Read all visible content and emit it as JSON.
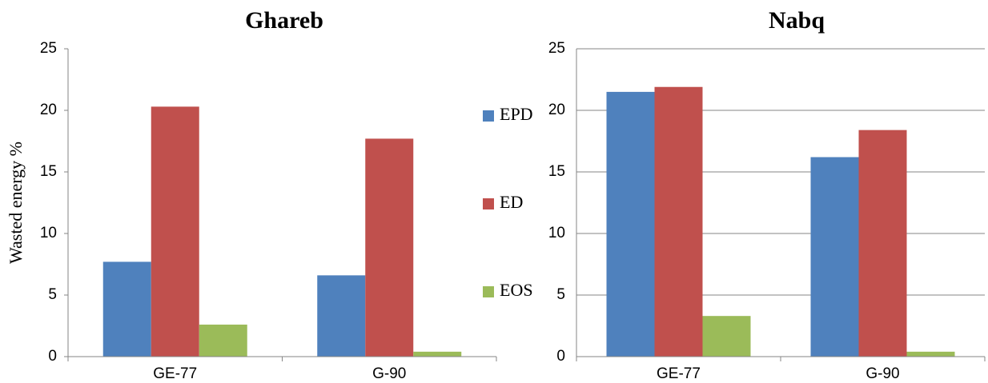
{
  "chart_data": [
    {
      "type": "bar",
      "title": "Ghareb",
      "y_label": "Wasted energy %",
      "categories": [
        "GE-77",
        "G-90"
      ],
      "series": [
        {
          "name": "EPD",
          "color": "#4f81bd",
          "values": [
            7.7,
            6.6
          ]
        },
        {
          "name": "ED",
          "color": "#c0504d",
          "values": [
            20.3,
            17.7
          ]
        },
        {
          "name": "EOS",
          "color": "#9bbb59",
          "values": [
            2.6,
            0.4
          ]
        }
      ],
      "ylim": [
        0,
        25
      ],
      "yticks": [
        0,
        5,
        10,
        15,
        20,
        25
      ],
      "grid": false,
      "legend": "right"
    },
    {
      "type": "bar",
      "title": "Nabq",
      "categories": [
        "GE-77",
        "G-90"
      ],
      "series": [
        {
          "color": "#4f81bd",
          "values": [
            21.5,
            16.2
          ]
        },
        {
          "color": "#c0504d",
          "values": [
            21.9,
            18.4
          ]
        },
        {
          "color": "#9bbb59",
          "values": [
            3.3,
            0.4
          ]
        }
      ],
      "ylim": [
        0,
        25
      ],
      "yticks": [
        0,
        5,
        10,
        15,
        20,
        25
      ],
      "grid": true
    }
  ]
}
